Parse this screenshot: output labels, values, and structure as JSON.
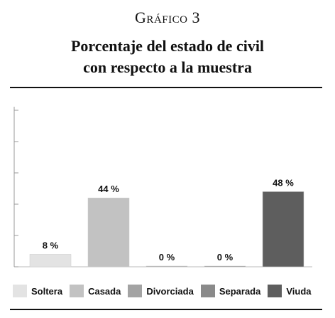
{
  "header": {
    "kicker": "Gráfico 3",
    "title_line1": "Porcentaje del estado de civil",
    "title_line2": "con respecto a la muestra"
  },
  "chart_data": {
    "type": "bar",
    "title": "Porcentaje del estado de civil con respecto a la muestra",
    "categories": [
      "Soltera",
      "Casada",
      "Divorciada",
      "Separada",
      "Viuda"
    ],
    "values": [
      8,
      44,
      0,
      0,
      48
    ],
    "value_labels": [
      "8 %",
      "44 %",
      "0 %",
      "0 %",
      "48 %"
    ],
    "colors": [
      "#e3e3e3",
      "#c2c2c2",
      "#a3a3a3",
      "#8a8a8a",
      "#5e5e5e"
    ],
    "ylim": [
      0,
      100
    ],
    "legend_position": "bottom",
    "grid": false
  }
}
